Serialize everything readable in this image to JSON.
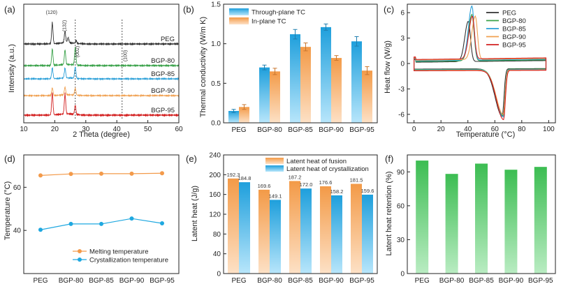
{
  "chart_data": [
    {
      "panel": "(a)",
      "type": "line",
      "title": "",
      "xlabel": "2 Theta (degree)",
      "ylabel": "Intensity (a.u.)",
      "xlim": [
        10,
        60
      ],
      "xticks": [
        "10",
        "20",
        "30",
        "40",
        "50",
        "60"
      ],
      "series": [
        {
          "name": "PEG",
          "color": "#333333",
          "peaks": [
            [
              19.2,
              1.0
            ],
            [
              23.3,
              0.55
            ],
            [
              24.3,
              0.25
            ],
            [
              26.9,
              0.12
            ]
          ]
        },
        {
          "name": "BGP-80",
          "color": "#3aa24a",
          "peaks": [
            [
              19.2,
              0.85
            ],
            [
              23.3,
              0.75
            ],
            [
              26.6,
              0.9
            ]
          ]
        },
        {
          "name": "BGP-85",
          "color": "#2a9fd8",
          "peaks": [
            [
              19.2,
              0.7
            ],
            [
              23.3,
              0.65
            ],
            [
              26.6,
              0.75
            ]
          ]
        },
        {
          "name": "BGP-90",
          "color": "#f0a050",
          "peaks": [
            [
              19.2,
              0.55
            ],
            [
              23.3,
              0.55
            ],
            [
              26.6,
              0.5
            ]
          ]
        },
        {
          "name": "BGP-95",
          "color": "#d32020",
          "peaks": [
            [
              19.2,
              1.0
            ],
            [
              23.3,
              0.9
            ],
            [
              26.6,
              0.4
            ]
          ]
        }
      ],
      "annotations": [
        "(120)",
        "(132)",
        "(002)",
        "(100)"
      ],
      "reference_lines_x": [
        26.6,
        41.7
      ]
    },
    {
      "panel": "(b)",
      "type": "bar",
      "categories": [
        "PEG",
        "BGP-80",
        "BGP-85",
        "BGP-90",
        "BGP-95"
      ],
      "series": [
        {
          "name": "Through-plane TC",
          "values": [
            0.15,
            0.7,
            1.12,
            1.21,
            1.03
          ],
          "errors": [
            0.02,
            0.03,
            0.06,
            0.04,
            0.06
          ],
          "color": "#2aa4db"
        },
        {
          "name": "In-plane TC",
          "values": [
            0.2,
            0.65,
            0.96,
            0.82,
            0.66
          ],
          "errors": [
            0.03,
            0.04,
            0.05,
            0.03,
            0.05
          ],
          "color": "#f1a66a"
        }
      ],
      "xlabel": "",
      "ylabel": "Thermal conductivity (W/m K)",
      "ylim": [
        0,
        1.5
      ],
      "yticks": [
        "0.0",
        "0.5",
        "1.0",
        "1.5"
      ]
    },
    {
      "panel": "(c)",
      "type": "line",
      "xlabel": "Temperature (°C)",
      "ylabel": "Heat flow (W/g)",
      "xlim": [
        -5,
        105
      ],
      "ylim": [
        -7,
        7
      ],
      "xticks": [
        "0",
        "20",
        "40",
        "60",
        "80",
        "100"
      ],
      "yticks": [
        "-6",
        "-3",
        "0",
        "3",
        "6"
      ],
      "series": [
        {
          "name": "PEG",
          "color": "#333333",
          "cryst_peak_T": 40.3,
          "cryst_peak_hf": 4.9,
          "melt_peak_T": 65.5,
          "melt_peak_hf": -6.2
        },
        {
          "name": "BGP-80",
          "color": "#3aa24a",
          "cryst_peak_T": 43.0,
          "cryst_peak_hf": 5.7,
          "melt_peak_T": 66.2,
          "melt_peak_hf": -6.1
        },
        {
          "name": "BGP-85",
          "color": "#2a9fd8",
          "cryst_peak_T": 43.0,
          "cryst_peak_hf": 6.7,
          "melt_peak_T": 66.3,
          "melt_peak_hf": -6.3
        },
        {
          "name": "BGP-90",
          "color": "#f0a050",
          "cryst_peak_T": 45.5,
          "cryst_peak_hf": 5.5,
          "melt_peak_T": 66.3,
          "melt_peak_hf": -6.0
        },
        {
          "name": "BGP-95",
          "color": "#d32020",
          "cryst_peak_T": 43.3,
          "cryst_peak_hf": 5.5,
          "melt_peak_T": 66.5,
          "melt_peak_hf": -6.6
        }
      ]
    },
    {
      "panel": "(d)",
      "type": "line",
      "categories": [
        "PEG",
        "BGP-80",
        "BGP-85",
        "BGP-90",
        "BGP-95"
      ],
      "series": [
        {
          "name": "Melting temperature",
          "values": [
            65.5,
            66.2,
            66.3,
            66.3,
            66.5
          ],
          "color": "#f39a4a"
        },
        {
          "name": "Crystallization temperature",
          "values": [
            40.3,
            43.0,
            43.0,
            45.5,
            43.3
          ],
          "color": "#1fa8e0"
        }
      ],
      "xlabel": "",
      "ylabel": "Temperature (°C)",
      "ylim": [
        20,
        75
      ],
      "yticks": [
        "40",
        "60"
      ]
    },
    {
      "panel": "(e)",
      "type": "bar",
      "categories": [
        "PEG",
        "BGP-80",
        "BGP-85",
        "BGP-90",
        "BGP-95"
      ],
      "series": [
        {
          "name": "Latent heat of fusion",
          "values": [
            192.3,
            169.6,
            187.2,
            176.6,
            181.5
          ],
          "labels": [
            "192.3",
            "169.6",
            "187.2",
            "176.6",
            "181.5"
          ],
          "color": "#f0953f"
        },
        {
          "name": "Latent heat of crystallization",
          "values": [
            184.8,
            149.1,
            172.0,
            158.2,
            159.6
          ],
          "labels": [
            "184.8",
            "149.1",
            "172.0",
            "158.2",
            "159.6"
          ],
          "color": "#1ea6e0"
        }
      ],
      "xlabel": "",
      "ylabel": "Latent heat (J/g)",
      "ylim": [
        0,
        240
      ],
      "yticks": [
        "0",
        "40",
        "80",
        "120",
        "160",
        "200",
        "240"
      ]
    },
    {
      "panel": "(f)",
      "type": "bar",
      "categories": [
        "PEG",
        "BGP-80",
        "BGP-85",
        "BGP-90",
        "BGP-95"
      ],
      "values": [
        100,
        88.2,
        97.3,
        91.9,
        94.4
      ],
      "color": "#3fbf55",
      "xlabel": "",
      "ylabel": "Latent heat retention (%)",
      "ylim": [
        0,
        105
      ],
      "yticks": [
        "0",
        "30",
        "60",
        "90"
      ]
    }
  ]
}
